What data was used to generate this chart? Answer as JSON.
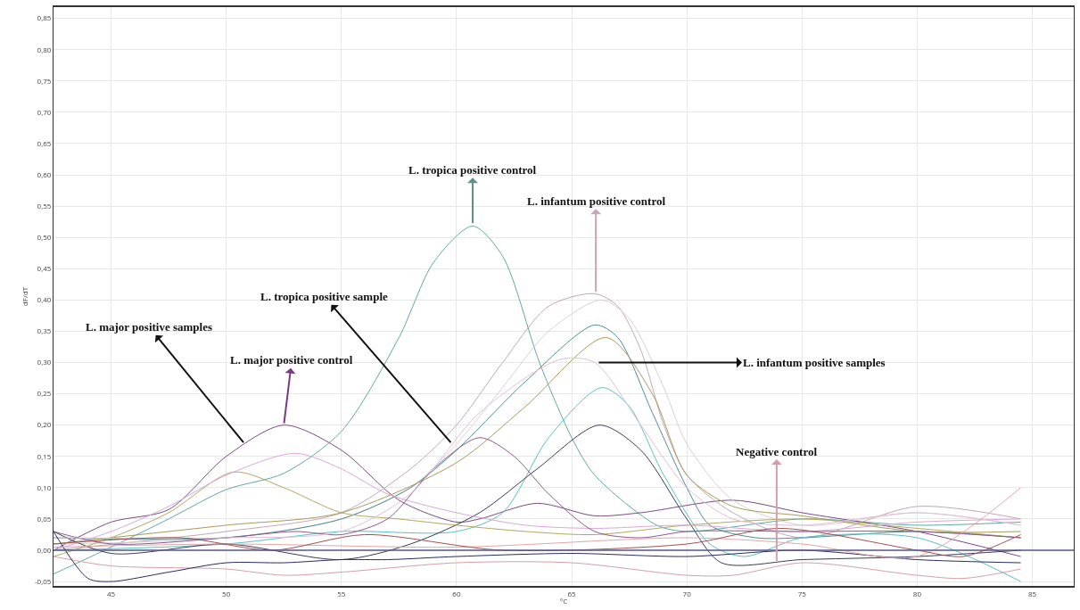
{
  "chart_data": {
    "type": "line",
    "xlabel": "°C",
    "ylabel": "dF/dT",
    "xlim": [
      42.5,
      86.8
    ],
    "ylim": [
      -0.057,
      0.868
    ],
    "xticks": [
      45,
      50,
      55,
      60,
      65,
      70,
      75,
      80,
      85
    ],
    "yticks": [
      {
        "value": -0.05,
        "label": "-0,05"
      },
      {
        "value": 0,
        "label": "0,00"
      },
      {
        "value": 0.05,
        "label": "0,05"
      },
      {
        "value": 0.1,
        "label": "0,10"
      },
      {
        "value": 0.15,
        "label": "0,15"
      },
      {
        "value": 0.2,
        "label": "0,20"
      },
      {
        "value": 0.25,
        "label": "0,25"
      },
      {
        "value": 0.3,
        "label": "0,30"
      },
      {
        "value": 0.35,
        "label": "0,35"
      },
      {
        "value": 0.4,
        "label": "0,40"
      },
      {
        "value": 0.45,
        "label": "0,45"
      },
      {
        "value": 0.5,
        "label": "0,50"
      },
      {
        "value": 0.55,
        "label": "0,55"
      },
      {
        "value": 0.6,
        "label": "0,60"
      },
      {
        "value": 0.65,
        "label": "0,65"
      },
      {
        "value": 0.7,
        "label": "0,70"
      },
      {
        "value": 0.75,
        "label": "0,75"
      },
      {
        "value": 0.8,
        "label": "0,80"
      },
      {
        "value": 0.85,
        "label": "0,85"
      }
    ],
    "grid": true,
    "marker": "none",
    "line_style": "solid",
    "series": [
      {
        "color": "#5fa8a3",
        "x": [
          42.5,
          45,
          47.5,
          50,
          52.5,
          55,
          57.5,
          59,
          60.7,
          62,
          63.6,
          65,
          66,
          68.7,
          70,
          75,
          80,
          84.5
        ],
        "values": [
          -0.038,
          0.005,
          0.05,
          0.097,
          0.123,
          0.19,
          0.34,
          0.46,
          0.518,
          0.47,
          0.3,
          0.18,
          0.12,
          0.04,
          0.03,
          0.05,
          0.04,
          0.045
        ]
      },
      {
        "color": "#7b4a7f",
        "x": [
          42.5,
          45,
          47.5,
          50,
          52.5,
          55,
          57.5,
          60,
          61,
          63.5,
          66,
          68,
          72,
          75,
          80,
          84.5
        ],
        "values": [
          0,
          0.045,
          0.065,
          0.15,
          0.2,
          0.16,
          0.08,
          0.045,
          0.05,
          0.075,
          0.055,
          0.06,
          0.08,
          0.06,
          0.03,
          -0.01
        ]
      },
      {
        "color": "#c4a6b8",
        "x": [
          42.5,
          50,
          55,
          58,
          60,
          62,
          64,
          66,
          67,
          68,
          69,
          70,
          72,
          75,
          80,
          84.5
        ],
        "values": [
          0,
          0.03,
          0.06,
          0.13,
          0.2,
          0.3,
          0.39,
          0.41,
          0.39,
          0.32,
          0.2,
          0.12,
          0.06,
          0.02,
          0.07,
          0.05
        ]
      },
      {
        "color": "#d8cfd6",
        "x": [
          42.5,
          50,
          55,
          58,
          60,
          62,
          64,
          66.3,
          67.5,
          69,
          70,
          72,
          75,
          80,
          84.5
        ],
        "values": [
          0.01,
          0.02,
          0.05,
          0.1,
          0.17,
          0.26,
          0.35,
          0.4,
          0.37,
          0.26,
          0.17,
          0.08,
          0.04,
          0.06,
          0.04
        ]
      },
      {
        "color": "#4b8e95",
        "x": [
          42.5,
          50,
          55,
          58,
          60,
          63,
          66,
          67,
          68.5,
          70,
          71,
          73,
          75,
          80,
          84.5
        ],
        "values": [
          0.02,
          0.02,
          0.05,
          0.1,
          0.16,
          0.27,
          0.36,
          0.34,
          0.22,
          0.1,
          0.04,
          0.02,
          0.02,
          0.03,
          0.02
        ]
      },
      {
        "color": "#a89a5a",
        "x": [
          42.5,
          50,
          55,
          60,
          63,
          66.5,
          68.5,
          70,
          72,
          75,
          80,
          84.5
        ],
        "values": [
          0.01,
          0.04,
          0.06,
          0.14,
          0.23,
          0.34,
          0.25,
          0.12,
          0.07,
          0.055,
          0.03,
          0.03
        ]
      },
      {
        "color": "#5bbfc4",
        "x": [
          42.5,
          50,
          55,
          60,
          62,
          64,
          66.3,
          67.5,
          69,
          71,
          72.5,
          75,
          80,
          84.5
        ],
        "values": [
          0,
          0.01,
          0.03,
          0.03,
          0.06,
          0.18,
          0.26,
          0.23,
          0.12,
          0.01,
          -0.01,
          0.02,
          0.02,
          -0.05
        ]
      },
      {
        "color": "#3a3a5a",
        "x": [
          42.5,
          45,
          50,
          55,
          58,
          61,
          63.5,
          66.2,
          68,
          70,
          71.5,
          75,
          80,
          84.5
        ],
        "values": [
          0.03,
          -0.005,
          0.01,
          -0.015,
          0.01,
          0.06,
          0.13,
          0.2,
          0.16,
          0.05,
          -0.02,
          -0.015,
          -0.01,
          0
        ]
      },
      {
        "color": "#b5a660",
        "x": [
          42.5,
          45,
          47.5,
          50.3,
          52.5,
          55,
          57.5,
          60,
          63,
          66,
          70,
          75,
          80,
          84.5
        ],
        "values": [
          -0.01,
          0.02,
          0.06,
          0.125,
          0.1,
          0.06,
          0.05,
          0.04,
          0.03,
          0.025,
          0.04,
          0.05,
          0.035,
          0.02
        ]
      },
      {
        "color": "#d8a8d8",
        "x": [
          42.5,
          45,
          47.5,
          50,
          53,
          55,
          57,
          60,
          63,
          66,
          70,
          75,
          80,
          84.5
        ],
        "values": [
          0,
          0.03,
          0.07,
          0.12,
          0.155,
          0.13,
          0.09,
          0.06,
          0.04,
          0.035,
          0.04,
          0.03,
          0.045,
          0.05
        ]
      },
      {
        "color": "#8c5a8e",
        "x": [
          42.5,
          45,
          50,
          53,
          55,
          57,
          59,
          61,
          62.5,
          64,
          66,
          68,
          70,
          75,
          80,
          84.5
        ],
        "values": [
          0.03,
          0.01,
          0.02,
          0.03,
          0.025,
          0.05,
          0.13,
          0.18,
          0.15,
          0.09,
          0.03,
          0.02,
          0.03,
          0.03,
          0.03,
          0.02
        ]
      },
      {
        "color": "#e0c0d8",
        "x": [
          42.5,
          50,
          55,
          58,
          61,
          64.5,
          66,
          68,
          70,
          72,
          75,
          80,
          84.5
        ],
        "values": [
          0.02,
          0.02,
          0.03,
          0.09,
          0.22,
          0.305,
          0.3,
          0.2,
          0.1,
          0.05,
          0.04,
          0.06,
          0.04
        ]
      },
      {
        "color": "#d4a0a8",
        "x": [
          42.5,
          45,
          50,
          52.5,
          55,
          60,
          65,
          70,
          72,
          75,
          80,
          82,
          84.5
        ],
        "values": [
          -0.01,
          -0.025,
          -0.03,
          -0.04,
          -0.035,
          -0.02,
          -0.02,
          -0.04,
          -0.04,
          -0.02,
          -0.04,
          -0.045,
          -0.03
        ]
      },
      {
        "color": "#2a2a60",
        "x": [
          42.5,
          44,
          45,
          47.5,
          50,
          52.5,
          55,
          57,
          60,
          65,
          70,
          75,
          80,
          84.5
        ],
        "values": [
          0.03,
          -0.045,
          -0.05,
          -0.035,
          -0.02,
          -0.02,
          -0.015,
          -0.015,
          -0.01,
          -0.005,
          -0.01,
          0,
          -0.015,
          -0.02
        ]
      },
      {
        "color": "#e0a8a8",
        "x": [
          42.5,
          50,
          60,
          70,
          75,
          80,
          84.5
        ],
        "values": [
          0.005,
          0.01,
          0.005,
          0.02,
          0.01,
          -0.01,
          0.1
        ]
      },
      {
        "color": "#a05050",
        "x": [
          42.5,
          48,
          52,
          56,
          62,
          70,
          74,
          80,
          82,
          84.5
        ],
        "values": [
          0.01,
          0.02,
          0,
          0.025,
          0,
          0.01,
          0.035,
          0,
          -0.01,
          0.025
        ]
      }
    ],
    "ref_lines": [
      {
        "axis": "y",
        "value": 0,
        "color": "#5a5a8a"
      }
    ],
    "annotations": [
      {
        "text": "L. tropica positive control",
        "x": 60.7,
        "y": 0.52
      },
      {
        "text": "L. infantum positive control",
        "x": 66.05,
        "y": 0.41
      },
      {
        "text": "L. major positive control",
        "x": 52.5,
        "y": 0.2
      },
      {
        "text": "L. major positive samples",
        "x": 50.8,
        "y": 0.17
      },
      {
        "text": "L. tropica positive sample",
        "x": 59.8,
        "y": 0.17
      },
      {
        "text": "L. infantum positive samples",
        "x": 66.1,
        "y": 0.3
      },
      {
        "text": "Negative control",
        "x": 73.9,
        "y": -0.02
      }
    ]
  }
}
